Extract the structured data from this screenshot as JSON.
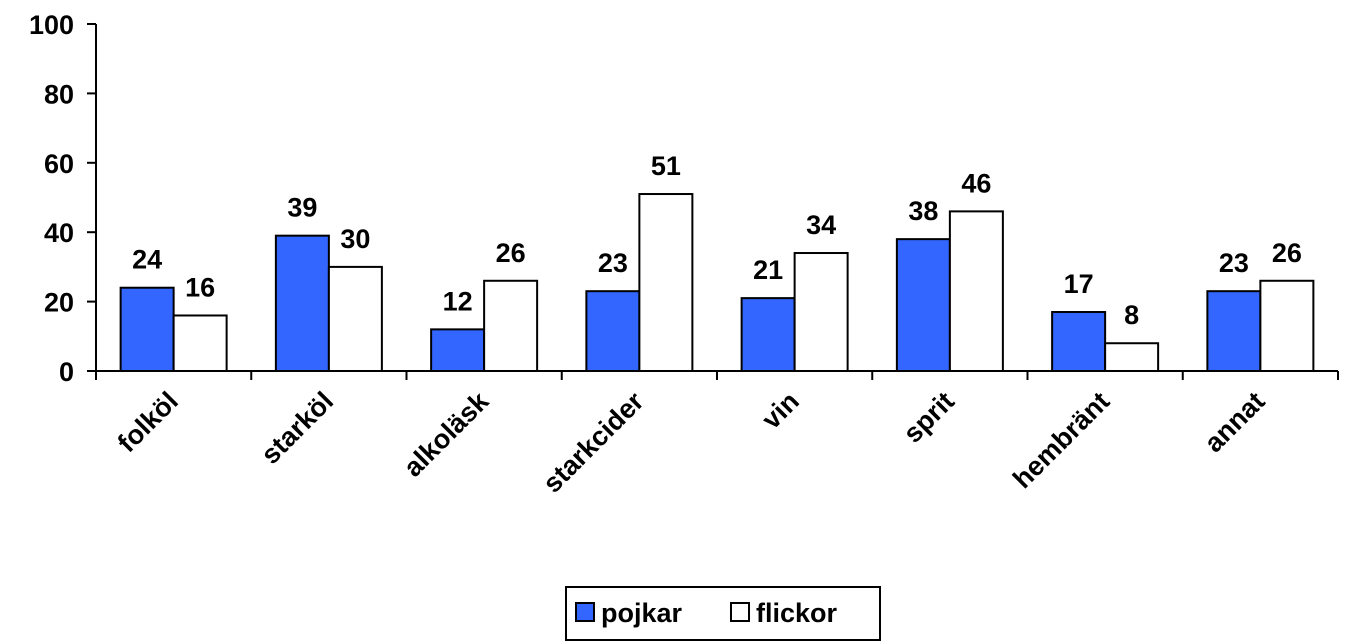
{
  "chart_data": {
    "type": "bar",
    "categories": [
      "folköl",
      "starköl",
      "alkoläsk",
      "starkcider",
      "vin",
      "sprit",
      "hembränt",
      "annat"
    ],
    "series": [
      {
        "name": "pojkar",
        "values": [
          24,
          39,
          12,
          23,
          21,
          38,
          17,
          23
        ],
        "color": "#3366ff"
      },
      {
        "name": "flickor",
        "values": [
          16,
          30,
          26,
          51,
          34,
          46,
          8,
          26
        ],
        "color": "#ffffff"
      }
    ],
    "ylim": [
      0,
      100
    ],
    "yticks": [
      0,
      20,
      40,
      60,
      80,
      100
    ],
    "grid": false,
    "legend_position": "bottom",
    "data_labels": true
  }
}
